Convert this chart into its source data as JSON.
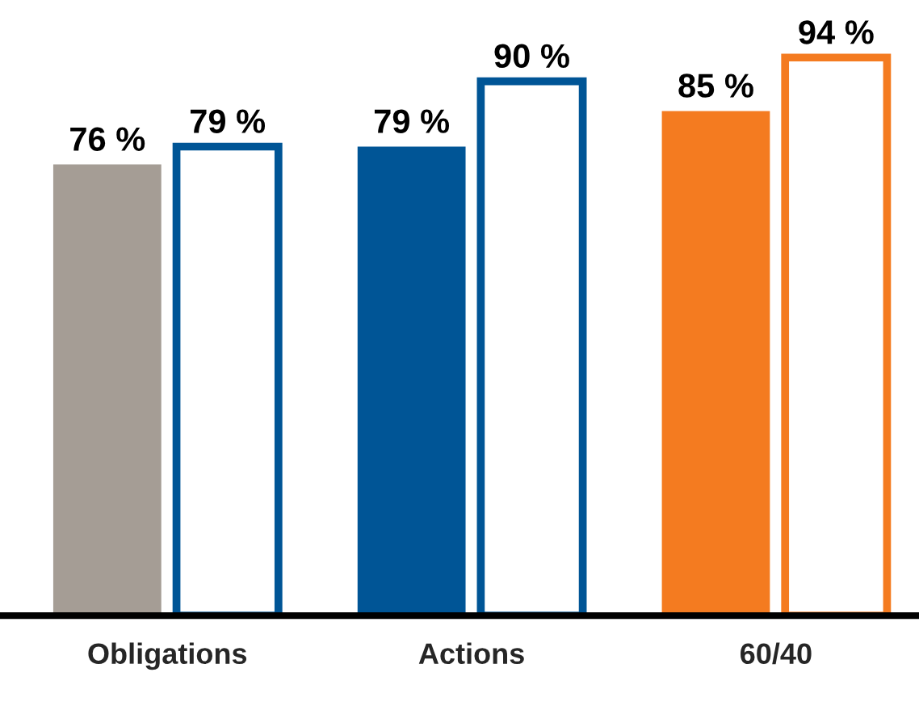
{
  "chart_data": {
    "type": "bar",
    "categories": [
      "Obligations",
      "Actions",
      "60/40"
    ],
    "series": [
      {
        "colors": [
          "#a59d95",
          "#005596",
          "#f47b20"
        ],
        "values": [
          76,
          79,
          85
        ],
        "value_labels": [
          "76 %",
          "79 %",
          "85 %"
        ]
      },
      {
        "colors": [
          "#005596",
          "#005596",
          "#f47b20"
        ],
        "values": [
          79,
          90,
          94
        ],
        "value_labels": [
          "79 %",
          "90 %",
          "94 %"
        ]
      }
    ],
    "grid": false,
    "legend": false
  }
}
